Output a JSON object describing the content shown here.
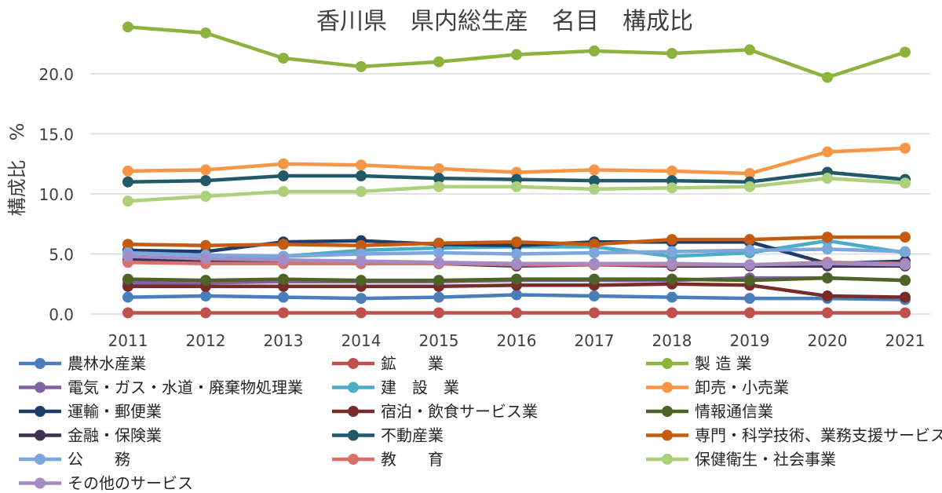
{
  "chart_data": {
    "type": "line",
    "title": "香川県　県内総生産　名目　構成比",
    "xlabel": "",
    "ylabel": "構成比　%",
    "ylim": [
      0,
      25
    ],
    "yticks": [
      "0.0",
      "5.0",
      "10.0",
      "15.0",
      "20.0"
    ],
    "ytick_values": [
      0,
      5,
      10,
      15,
      20
    ],
    "grid": true,
    "legend_position": "bottom",
    "categories": [
      "2011",
      "2012",
      "2013",
      "2014",
      "2015",
      "2016",
      "2017",
      "2018",
      "2019",
      "2020",
      "2021"
    ],
    "series": [
      {
        "name": "農林水産業",
        "color": "#4a7ebb",
        "values": [
          1.4,
          1.5,
          1.4,
          1.3,
          1.4,
          1.6,
          1.5,
          1.4,
          1.3,
          1.3,
          1.2
        ]
      },
      {
        "name": "鉱　　業",
        "color": "#c0504d",
        "values": [
          0.1,
          0.1,
          0.1,
          0.1,
          0.1,
          0.1,
          0.1,
          0.1,
          0.1,
          0.1,
          0.1
        ]
      },
      {
        "name": "製 造 業",
        "color": "#8cb33e",
        "values": [
          23.9,
          23.4,
          21.3,
          20.6,
          21.0,
          21.6,
          21.9,
          21.7,
          22.0,
          19.7,
          21.8
        ]
      },
      {
        "name": "電気・ガス・水道・廃棄物処理業",
        "color": "#8064a2",
        "values": [
          2.6,
          2.6,
          2.7,
          2.7,
          2.7,
          2.8,
          2.8,
          2.8,
          3.0,
          3.0,
          2.8
        ]
      },
      {
        "name": "建　設　業",
        "color": "#4bacc6",
        "values": [
          4.6,
          4.5,
          4.8,
          5.3,
          5.5,
          5.6,
          5.6,
          4.8,
          5.1,
          6.1,
          5.1
        ]
      },
      {
        "name": "卸売・小売業",
        "color": "#f79646",
        "values": [
          11.9,
          12.0,
          12.5,
          12.4,
          12.1,
          11.8,
          12.0,
          11.9,
          11.7,
          13.5,
          13.8
        ]
      },
      {
        "name": "運輸・郵便業",
        "color": "#1f3d6b",
        "values": [
          5.3,
          5.2,
          6.0,
          6.1,
          5.8,
          5.7,
          6.0,
          6.0,
          6.0,
          4.2,
          4.4
        ]
      },
      {
        "name": "宿泊・飲食サービス業",
        "color": "#772c2a",
        "values": [
          2.3,
          2.3,
          2.3,
          2.3,
          2.3,
          2.4,
          2.4,
          2.5,
          2.4,
          1.5,
          1.4
        ]
      },
      {
        "name": "情報通信業",
        "color": "#4f6228",
        "values": [
          2.9,
          2.8,
          2.9,
          2.8,
          2.8,
          2.9,
          2.9,
          2.9,
          2.8,
          3.0,
          2.8
        ]
      },
      {
        "name": "金融・保険業",
        "color": "#3f3151",
        "values": [
          4.5,
          4.4,
          4.4,
          4.3,
          4.2,
          4.0,
          4.1,
          4.0,
          4.0,
          4.0,
          4.0
        ]
      },
      {
        "name": "不動産業",
        "color": "#215968",
        "values": [
          11.0,
          11.1,
          11.5,
          11.5,
          11.3,
          11.2,
          11.1,
          11.1,
          11.0,
          11.8,
          11.2
        ]
      },
      {
        "name": "専門・科学技術、業務支援サービス業",
        "color": "#c55a11",
        "values": [
          5.8,
          5.7,
          5.8,
          5.7,
          5.9,
          6.0,
          5.8,
          6.2,
          6.2,
          6.4,
          6.4
        ]
      },
      {
        "name": "公　　務",
        "color": "#7ba7de",
        "values": [
          5.1,
          4.9,
          4.8,
          5.0,
          5.1,
          5.0,
          5.1,
          5.2,
          5.3,
          5.4,
          5.2
        ]
      },
      {
        "name": "教　　育",
        "color": "#d9706c",
        "values": [
          4.3,
          4.2,
          4.2,
          4.2,
          4.2,
          4.1,
          4.1,
          4.1,
          4.1,
          4.3,
          4.2
        ]
      },
      {
        "name": "保健衛生・社会事業",
        "color": "#acd07b",
        "values": [
          9.4,
          9.8,
          10.2,
          10.2,
          10.6,
          10.6,
          10.4,
          10.5,
          10.6,
          11.3,
          10.9
        ]
      },
      {
        "name": "その他のサービス",
        "color": "#a38cc6",
        "values": [
          4.8,
          4.6,
          4.5,
          4.4,
          4.3,
          4.2,
          4.2,
          4.2,
          4.1,
          4.2,
          4.1
        ]
      }
    ]
  }
}
